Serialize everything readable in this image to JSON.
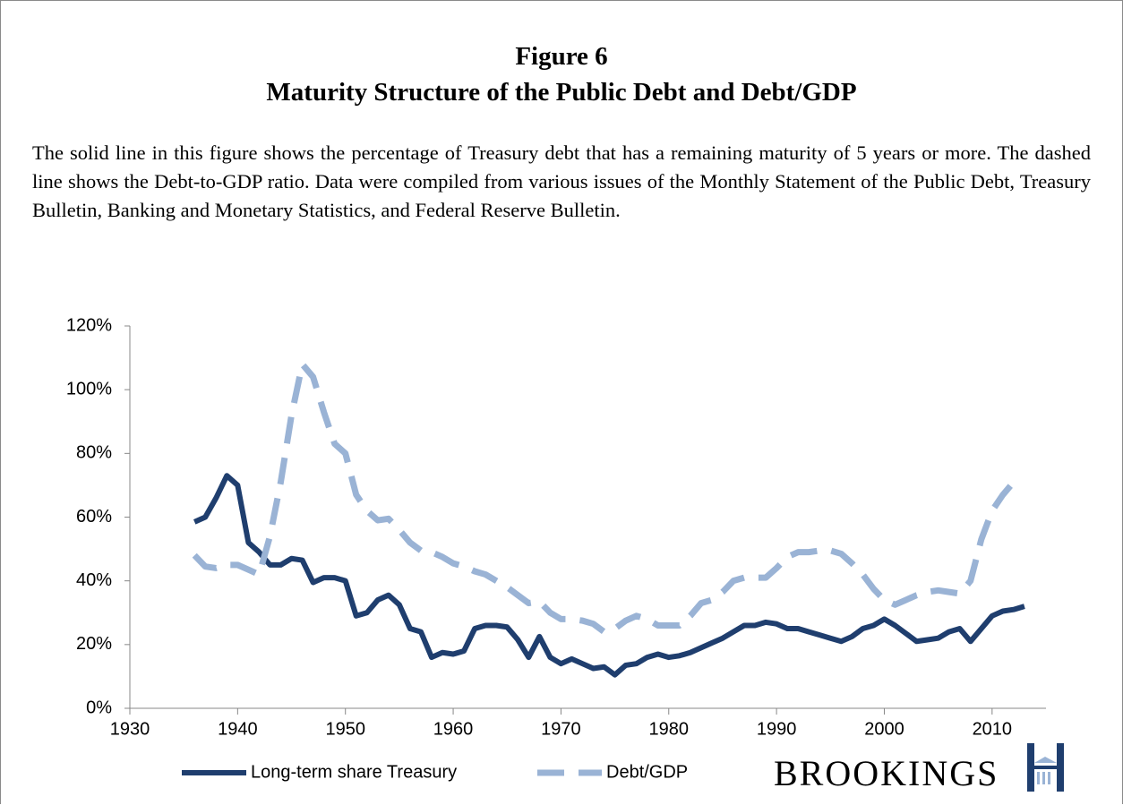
{
  "title": "Figure 6",
  "subtitle": "Maturity Structure of the Public Debt and Debt/GDP",
  "description": "The solid line in this figure shows the percentage of Treasury debt that has a remaining maturity of 5 years or more. The dashed line shows the Debt-to-GDP ratio. Data were compiled from various issues of the Monthly Statement of the Public Debt, Treasury Bulletin, Banking and Monetary Statistics, and Federal Reserve Bulletin.",
  "logo": "BROOKINGS",
  "chart_data": {
    "type": "line",
    "x": [
      1936,
      1937,
      1938,
      1939,
      1940,
      1941,
      1942,
      1943,
      1944,
      1945,
      1946,
      1947,
      1948,
      1949,
      1950,
      1951,
      1952,
      1953,
      1954,
      1955,
      1956,
      1957,
      1958,
      1959,
      1960,
      1961,
      1962,
      1963,
      1964,
      1965,
      1966,
      1967,
      1968,
      1969,
      1970,
      1971,
      1972,
      1973,
      1974,
      1975,
      1976,
      1977,
      1978,
      1979,
      1980,
      1981,
      1982,
      1983,
      1984,
      1985,
      1986,
      1987,
      1988,
      1989,
      1990,
      1991,
      1992,
      1993,
      1994,
      1995,
      1996,
      1997,
      1998,
      1999,
      2000,
      2001,
      2002,
      2003,
      2004,
      2005,
      2006,
      2007,
      2008,
      2009,
      2010,
      2011,
      2012,
      2013
    ],
    "series": [
      {
        "name": "Long-term share Treasury",
        "color": "#1f3e6e",
        "dashed": false,
        "values": [
          58.5,
          60,
          66,
          73,
          70,
          52,
          49,
          45,
          45,
          47,
          46.5,
          39.5,
          41,
          41,
          40,
          29,
          30,
          34,
          35.5,
          32.5,
          25,
          24,
          16,
          17.5,
          17,
          18,
          25,
          26,
          26,
          25.5,
          21.5,
          16,
          22.5,
          16,
          14,
          15.5,
          14,
          12.5,
          13,
          10.5,
          13.5,
          14,
          16,
          17,
          16,
          16.5,
          17.5,
          19,
          20.5,
          22,
          24,
          26,
          26,
          27,
          26.5,
          25,
          25,
          24,
          23,
          22,
          21,
          22.5,
          25,
          26,
          28,
          26,
          23.5,
          21,
          21.5,
          22,
          24,
          25,
          21,
          25,
          29,
          30.5,
          31,
          32
        ]
      },
      {
        "name": "Debt/GDP",
        "color": "#9ab3d5",
        "dashed": true,
        "values": [
          48,
          44.5,
          44,
          45,
          45,
          43.5,
          42,
          54,
          71,
          92,
          108,
          104,
          93,
          83,
          80,
          67,
          62,
          59,
          59.5,
          56,
          52,
          49.5,
          49,
          47.5,
          45.5,
          44.5,
          43,
          42,
          40,
          38,
          35.5,
          33,
          33.5,
          30,
          28,
          28,
          27.5,
          26.5,
          24,
          25,
          27.5,
          29,
          28,
          26,
          26,
          26,
          29,
          33,
          34,
          36.5,
          40,
          41,
          41,
          41,
          44,
          47.5,
          49,
          49,
          49.5,
          49.5,
          48.5,
          45.5,
          42,
          37.5,
          34,
          32.5,
          34,
          35.5,
          36.5,
          37,
          36.5,
          36,
          40,
          53,
          62,
          67,
          71,
          null
        ]
      }
    ],
    "xlim": [
      1930,
      2015
    ],
    "xticks": [
      1930,
      1940,
      1950,
      1960,
      1970,
      1980,
      1990,
      2000,
      2010
    ],
    "ylim": [
      0,
      120
    ],
    "yticks": [
      {
        "value": 0,
        "label": "0%"
      },
      {
        "value": 20,
        "label": "20%"
      },
      {
        "value": 40,
        "label": "40%"
      },
      {
        "value": 60,
        "label": "60%"
      },
      {
        "value": 80,
        "label": "80%"
      },
      {
        "value": 100,
        "label": "100%"
      },
      {
        "value": 120,
        "label": "120%"
      }
    ],
    "grid": false,
    "legend": "bottom"
  }
}
